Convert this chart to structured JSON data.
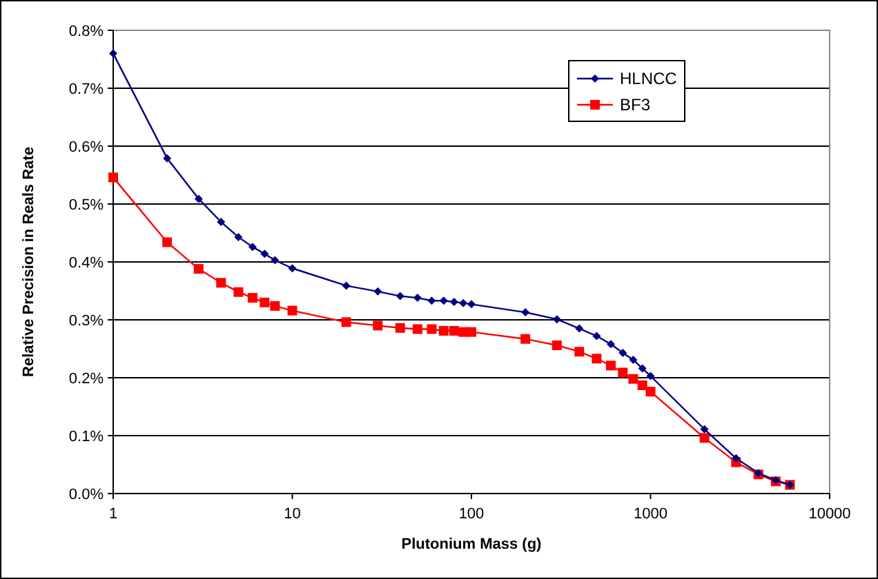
{
  "chart_data": {
    "type": "line",
    "xlabel": "Plutonium Mass (g)",
    "ylabel": "Relative Precision in Reals Rate",
    "log": "x",
    "xlim": [
      1,
      10000
    ],
    "xticks": [
      1,
      10,
      100,
      1000,
      10000
    ],
    "ylim": [
      0,
      0.8
    ],
    "yticks": [
      {
        "value": 0,
        "label": "0.0%"
      },
      {
        "value": 0.1,
        "label": "0.1%"
      },
      {
        "value": 0.2,
        "label": "0.2%"
      },
      {
        "value": 0.3,
        "label": "0.3%"
      },
      {
        "value": 0.4,
        "label": "0.4%"
      },
      {
        "value": 0.5,
        "label": "0.5%"
      },
      {
        "value": 0.6,
        "label": "0.6%"
      },
      {
        "value": 0.7,
        "label": "0.7%"
      },
      {
        "value": 0.8,
        "label": "0.8%"
      }
    ],
    "grid": "y",
    "legend": "top right",
    "line_style": "solid",
    "x": [
      1,
      2,
      3,
      4,
      5,
      6,
      7,
      8,
      10,
      20,
      30,
      40,
      50,
      60,
      70,
      80,
      90,
      100,
      200,
      300,
      400,
      500,
      600,
      700,
      800,
      900,
      1000,
      2000,
      3000,
      4000,
      5000,
      6000
    ],
    "series": [
      {
        "name": "HLNCC",
        "color": "#000080",
        "marker": "diamond",
        "values": [
          0.76,
          0.579,
          0.509,
          0.469,
          0.443,
          0.426,
          0.414,
          0.403,
          0.389,
          0.359,
          0.349,
          0.341,
          0.338,
          0.333,
          0.333,
          0.331,
          0.329,
          0.327,
          0.313,
          0.301,
          0.285,
          0.272,
          0.258,
          0.243,
          0.231,
          0.216,
          0.203,
          0.111,
          0.061,
          0.035,
          0.023,
          0.015
        ]
      },
      {
        "name": "BF3",
        "color": "#ff0000",
        "marker": "square",
        "values": [
          0.546,
          0.434,
          0.388,
          0.364,
          0.348,
          0.338,
          0.33,
          0.324,
          0.316,
          0.296,
          0.29,
          0.286,
          0.284,
          0.284,
          0.281,
          0.281,
          0.279,
          0.279,
          0.267,
          0.256,
          0.245,
          0.233,
          0.221,
          0.209,
          0.198,
          0.187,
          0.176,
          0.096,
          0.054,
          0.033,
          0.021,
          0.015
        ]
      }
    ]
  }
}
